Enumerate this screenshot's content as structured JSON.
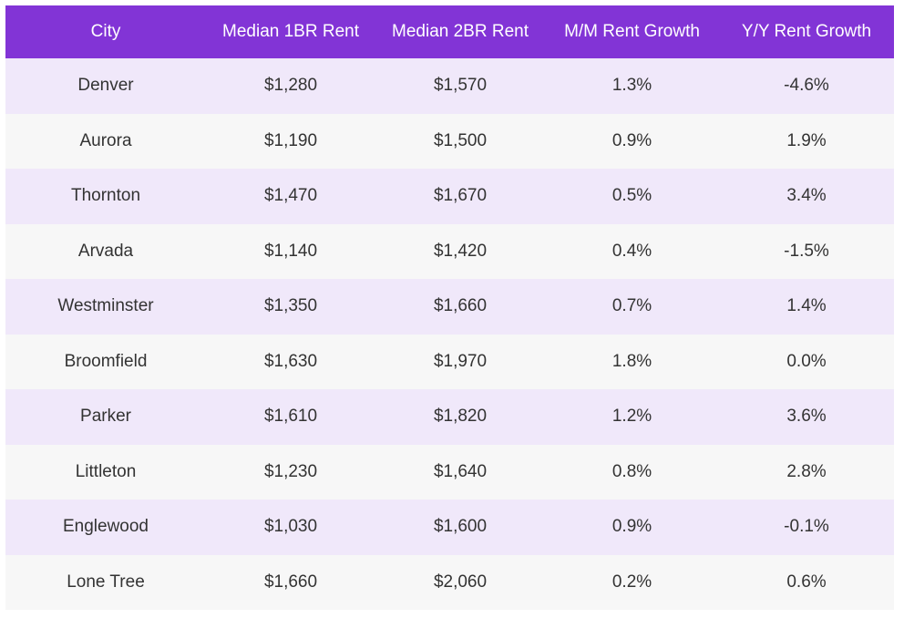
{
  "table": {
    "headers": [
      "City",
      "Median 1BR Rent",
      "Median 2BR Rent",
      "M/M Rent Growth",
      "Y/Y Rent Growth"
    ],
    "rows": [
      [
        "Denver",
        "$1,280",
        "$1,570",
        "1.3%",
        "-4.6%"
      ],
      [
        "Aurora",
        "$1,190",
        "$1,500",
        "0.9%",
        "1.9%"
      ],
      [
        "Thornton",
        "$1,470",
        "$1,670",
        "0.5%",
        "3.4%"
      ],
      [
        "Arvada",
        "$1,140",
        "$1,420",
        "0.4%",
        "-1.5%"
      ],
      [
        "Westminster",
        "$1,350",
        "$1,660",
        "0.7%",
        "1.4%"
      ],
      [
        "Broomfield",
        "$1,630",
        "$1,970",
        "1.8%",
        "0.0%"
      ],
      [
        "Parker",
        "$1,610",
        "$1,820",
        "1.2%",
        "3.6%"
      ],
      [
        "Littleton",
        "$1,230",
        "$1,640",
        "0.8%",
        "2.8%"
      ],
      [
        "Englewood",
        "$1,030",
        "$1,600",
        "0.9%",
        "-0.1%"
      ],
      [
        "Lone Tree",
        "$1,660",
        "$2,060",
        "0.2%",
        "0.6%"
      ]
    ]
  },
  "colors": {
    "header_bg": "#8234d6",
    "header_text": "#ffffff",
    "row_odd_bg": "#f0e8fa",
    "row_even_bg": "#f7f7f7",
    "cell_text": "#333333"
  }
}
